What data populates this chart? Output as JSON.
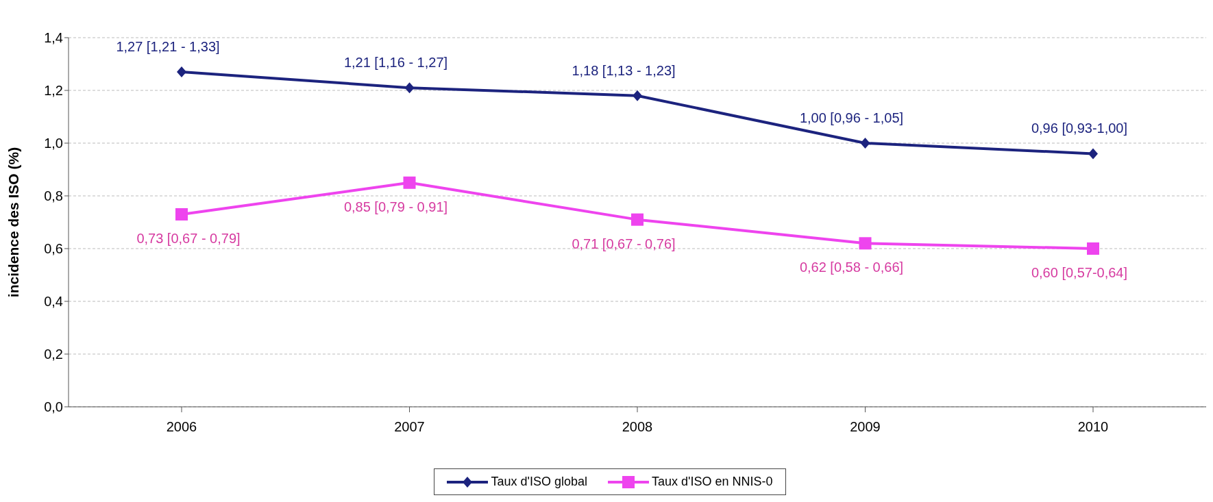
{
  "chart_data": {
    "type": "line",
    "ylabel": "incidence des ISO (%)",
    "categories": [
      "2006",
      "2007",
      "2008",
      "2009",
      "2010"
    ],
    "series": [
      {
        "name": "Taux d'ISO global",
        "color": "#1c237e",
        "marker": "diamond",
        "values": [
          1.27,
          1.21,
          1.18,
          1.0,
          0.96
        ],
        "value_labels": [
          "1,27 [1,21 - 1,33]",
          "1,21 [1,16 - 1,27]",
          "1,18 [1,13 - 1,23]",
          "1,00 [0,96 - 1,05]",
          "0,96 [0,93-1,00]"
        ]
      },
      {
        "name": "Taux d'ISO en NNIS-0",
        "color": "#ee44ee",
        "marker": "square",
        "values": [
          0.73,
          0.85,
          0.71,
          0.62,
          0.6
        ],
        "value_labels": [
          "0,73 [0,67 - 0,79]",
          "0,85 [0,79 - 0,91]",
          "0,71 [0,67 - 0,76]",
          "0,62 [0,58 - 0,66]",
          "0,60 [0,57-0,64]"
        ]
      }
    ],
    "ylim": [
      0,
      1.4
    ],
    "yticks": [
      {
        "value": 0,
        "label": "0,0"
      },
      {
        "value": 0.2,
        "label": "0,2"
      },
      {
        "value": 0.4,
        "label": "0,4"
      },
      {
        "value": 0.6,
        "label": "0,6"
      },
      {
        "value": 0.8,
        "label": "0,8"
      },
      {
        "value": 1.0,
        "label": "1,0"
      },
      {
        "value": 1.2,
        "label": "1,2"
      },
      {
        "value": 1.4,
        "label": "1,4"
      }
    ],
    "grid": "y",
    "legend": "bottom",
    "line_style": "solid"
  }
}
